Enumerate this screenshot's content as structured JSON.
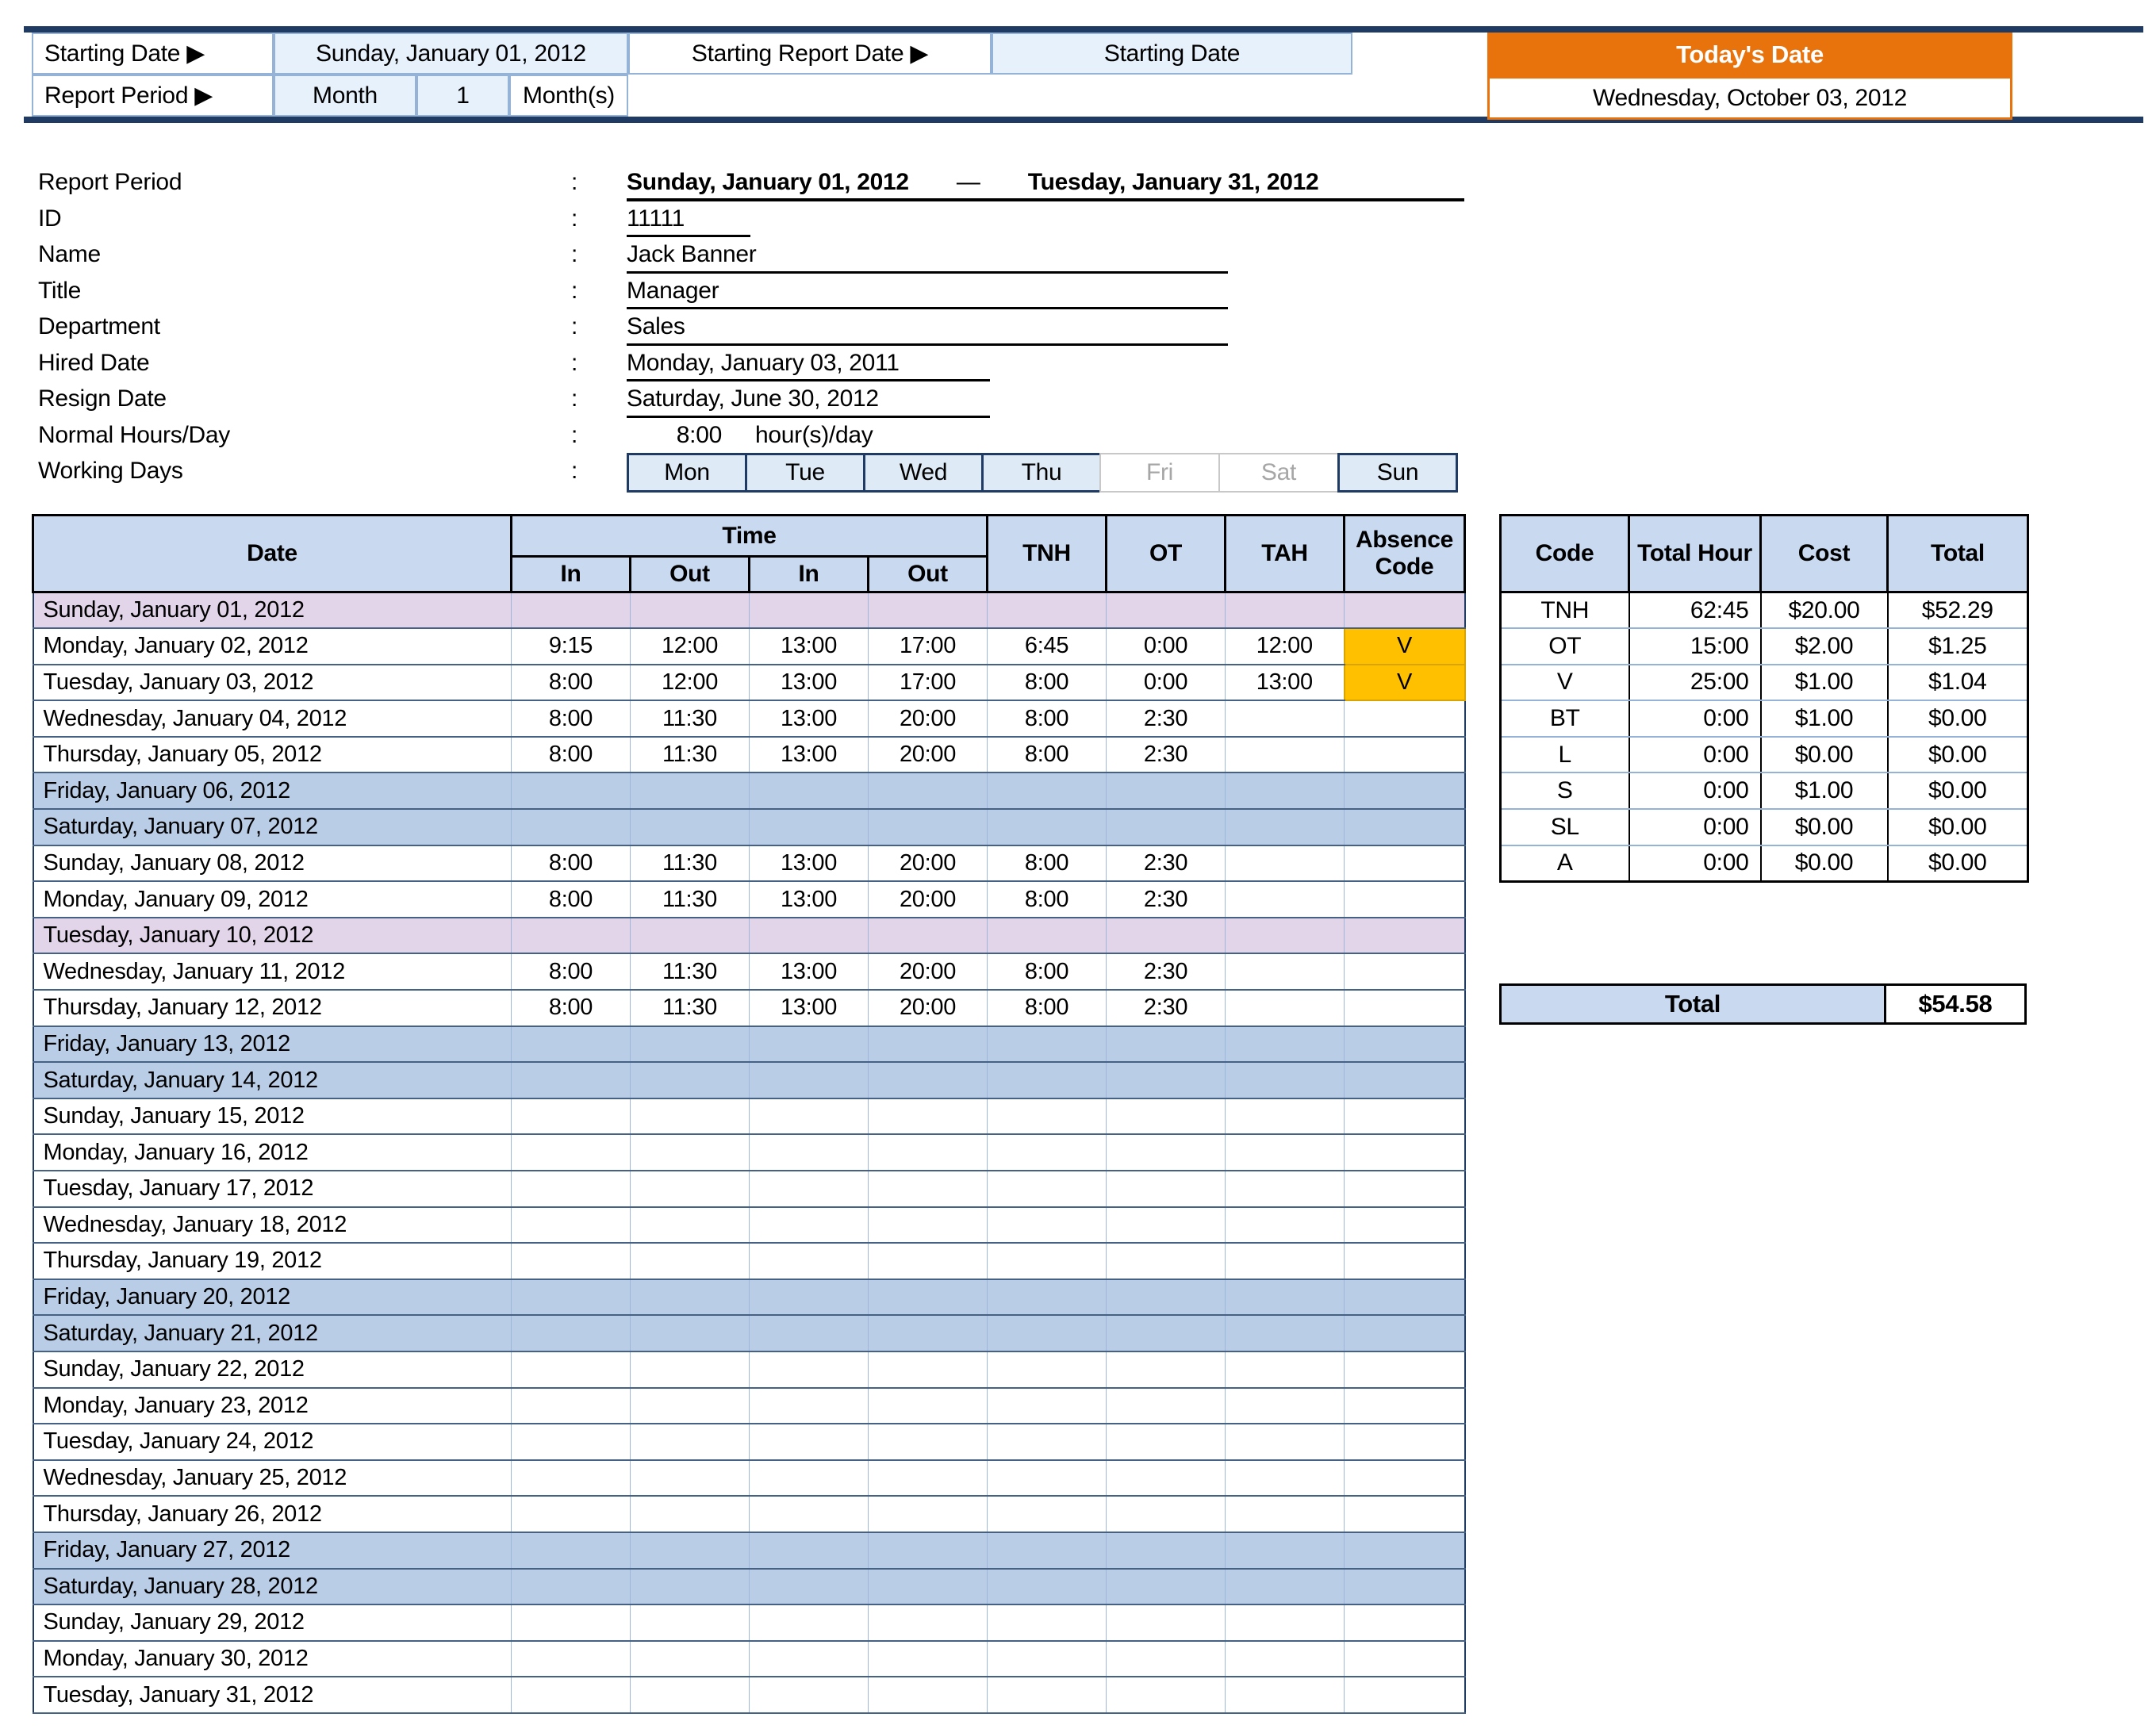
{
  "ui": {
    "colon": ":"
  },
  "colors": {
    "navy": "#1F3B63",
    "pale_blue": "#E7F1FB",
    "header_blue": "#C8D9F0",
    "weekend_blue": "#B9CDE6",
    "holiday_lavender": "#E2D5E9",
    "absence_gold": "#FFC000",
    "accent_orange": "#E8730C",
    "grid_vertical": "#9DB6D9",
    "grid_horizontal": "#456285",
    "cell_border_blue": "#95B3D7",
    "day_active": "#DEEBF7",
    "inactive_gray": "#A6A6A6"
  },
  "top_bar": {
    "starting_date_label": "Starting Date ▶",
    "starting_date_value": "Sunday, January 01, 2012",
    "report_period_label": "Report Period ▶",
    "report_period_unit": "Month",
    "report_period_count": "1",
    "report_period_suffix": "Month(s)",
    "starting_report_date_label": "Starting Report Date ▶",
    "starting_report_date_value": "Starting Date",
    "todays_date_label": "Today's Date",
    "todays_date_value": "Wednesday, October 03, 2012"
  },
  "info": {
    "report_period": {
      "label": "Report Period",
      "start": "Sunday, January 01, 2012",
      "dash": "—",
      "end": "Tuesday, January 31, 2012"
    },
    "id": {
      "label": "ID",
      "value": "11111"
    },
    "name": {
      "label": "Name",
      "value": "Jack Banner"
    },
    "title": {
      "label": "Title",
      "value": "Manager"
    },
    "department": {
      "label": "Department",
      "value": "Sales"
    },
    "hired_date": {
      "label": "Hired Date",
      "value": "Monday, January 03, 2011"
    },
    "resign_date": {
      "label": "Resign Date",
      "value": "Saturday, June 30, 2012"
    },
    "normal_hours": {
      "label": "Normal Hours/Day",
      "value": "8:00",
      "suffix": "hour(s)/day"
    },
    "working_days_label": "Working Days"
  },
  "working_days": [
    {
      "label": "Mon",
      "active": true
    },
    {
      "label": "Tue",
      "active": true
    },
    {
      "label": "Wed",
      "active": true
    },
    {
      "label": "Thu",
      "active": true
    },
    {
      "label": "Fri",
      "active": false
    },
    {
      "label": "Sat",
      "active": false
    },
    {
      "label": "Sun",
      "active": true
    }
  ],
  "timesheet": {
    "headers": {
      "date": "Date",
      "time": "Time",
      "in": "In",
      "out": "Out",
      "tnh": "TNH",
      "ot": "OT",
      "tah": "TAH",
      "absence": "Absence Code"
    },
    "rows": [
      {
        "date": "Sunday, January 01, 2012",
        "type": "holiday",
        "in1": "",
        "out1": "",
        "in2": "",
        "out2": "",
        "tnh": "",
        "ot": "",
        "tah": "",
        "abs": ""
      },
      {
        "date": "Monday, January 02, 2012",
        "type": "normal",
        "in1": "9:15",
        "out1": "12:00",
        "in2": "13:00",
        "out2": "17:00",
        "tnh": "6:45",
        "ot": "0:00",
        "tah": "12:00",
        "abs": "V"
      },
      {
        "date": "Tuesday, January 03, 2012",
        "type": "normal",
        "in1": "8:00",
        "out1": "12:00",
        "in2": "13:00",
        "out2": "17:00",
        "tnh": "8:00",
        "ot": "0:00",
        "tah": "13:00",
        "abs": "V"
      },
      {
        "date": "Wednesday, January 04, 2012",
        "type": "normal",
        "in1": "8:00",
        "out1": "11:30",
        "in2": "13:00",
        "out2": "20:00",
        "tnh": "8:00",
        "ot": "2:30",
        "tah": "",
        "abs": ""
      },
      {
        "date": "Thursday, January 05, 2012",
        "type": "normal",
        "in1": "8:00",
        "out1": "11:30",
        "in2": "13:00",
        "out2": "20:00",
        "tnh": "8:00",
        "ot": "2:30",
        "tah": "",
        "abs": ""
      },
      {
        "date": "Friday, January 06, 2012",
        "type": "weekend",
        "in1": "",
        "out1": "",
        "in2": "",
        "out2": "",
        "tnh": "",
        "ot": "",
        "tah": "",
        "abs": ""
      },
      {
        "date": "Saturday, January 07, 2012",
        "type": "weekend",
        "in1": "",
        "out1": "",
        "in2": "",
        "out2": "",
        "tnh": "",
        "ot": "",
        "tah": "",
        "abs": ""
      },
      {
        "date": "Sunday, January 08, 2012",
        "type": "normal",
        "in1": "8:00",
        "out1": "11:30",
        "in2": "13:00",
        "out2": "20:00",
        "tnh": "8:00",
        "ot": "2:30",
        "tah": "",
        "abs": ""
      },
      {
        "date": "Monday, January 09, 2012",
        "type": "normal",
        "in1": "8:00",
        "out1": "11:30",
        "in2": "13:00",
        "out2": "20:00",
        "tnh": "8:00",
        "ot": "2:30",
        "tah": "",
        "abs": ""
      },
      {
        "date": "Tuesday, January 10, 2012",
        "type": "holiday",
        "in1": "",
        "out1": "",
        "in2": "",
        "out2": "",
        "tnh": "",
        "ot": "",
        "tah": "",
        "abs": ""
      },
      {
        "date": "Wednesday, January 11, 2012",
        "type": "normal",
        "in1": "8:00",
        "out1": "11:30",
        "in2": "13:00",
        "out2": "20:00",
        "tnh": "8:00",
        "ot": "2:30",
        "tah": "",
        "abs": ""
      },
      {
        "date": "Thursday, January 12, 2012",
        "type": "normal",
        "in1": "8:00",
        "out1": "11:30",
        "in2": "13:00",
        "out2": "20:00",
        "tnh": "8:00",
        "ot": "2:30",
        "tah": "",
        "abs": ""
      },
      {
        "date": "Friday, January 13, 2012",
        "type": "weekend",
        "in1": "",
        "out1": "",
        "in2": "",
        "out2": "",
        "tnh": "",
        "ot": "",
        "tah": "",
        "abs": ""
      },
      {
        "date": "Saturday, January 14, 2012",
        "type": "weekend",
        "in1": "",
        "out1": "",
        "in2": "",
        "out2": "",
        "tnh": "",
        "ot": "",
        "tah": "",
        "abs": ""
      },
      {
        "date": "Sunday, January 15, 2012",
        "type": "normal",
        "in1": "",
        "out1": "",
        "in2": "",
        "out2": "",
        "tnh": "",
        "ot": "",
        "tah": "",
        "abs": ""
      },
      {
        "date": "Monday, January 16, 2012",
        "type": "normal",
        "in1": "",
        "out1": "",
        "in2": "",
        "out2": "",
        "tnh": "",
        "ot": "",
        "tah": "",
        "abs": ""
      },
      {
        "date": "Tuesday, January 17, 2012",
        "type": "normal",
        "in1": "",
        "out1": "",
        "in2": "",
        "out2": "",
        "tnh": "",
        "ot": "",
        "tah": "",
        "abs": ""
      },
      {
        "date": "Wednesday, January 18, 2012",
        "type": "normal",
        "in1": "",
        "out1": "",
        "in2": "",
        "out2": "",
        "tnh": "",
        "ot": "",
        "tah": "",
        "abs": ""
      },
      {
        "date": "Thursday, January 19, 2012",
        "type": "normal",
        "in1": "",
        "out1": "",
        "in2": "",
        "out2": "",
        "tnh": "",
        "ot": "",
        "tah": "",
        "abs": ""
      },
      {
        "date": "Friday, January 20, 2012",
        "type": "weekend",
        "in1": "",
        "out1": "",
        "in2": "",
        "out2": "",
        "tnh": "",
        "ot": "",
        "tah": "",
        "abs": ""
      },
      {
        "date": "Saturday, January 21, 2012",
        "type": "weekend",
        "in1": "",
        "out1": "",
        "in2": "",
        "out2": "",
        "tnh": "",
        "ot": "",
        "tah": "",
        "abs": ""
      },
      {
        "date": "Sunday, January 22, 2012",
        "type": "normal",
        "in1": "",
        "out1": "",
        "in2": "",
        "out2": "",
        "tnh": "",
        "ot": "",
        "tah": "",
        "abs": ""
      },
      {
        "date": "Monday, January 23, 2012",
        "type": "normal",
        "in1": "",
        "out1": "",
        "in2": "",
        "out2": "",
        "tnh": "",
        "ot": "",
        "tah": "",
        "abs": ""
      },
      {
        "date": "Tuesday, January 24, 2012",
        "type": "normal",
        "in1": "",
        "out1": "",
        "in2": "",
        "out2": "",
        "tnh": "",
        "ot": "",
        "tah": "",
        "abs": ""
      },
      {
        "date": "Wednesday, January 25, 2012",
        "type": "normal",
        "in1": "",
        "out1": "",
        "in2": "",
        "out2": "",
        "tnh": "",
        "ot": "",
        "tah": "",
        "abs": ""
      },
      {
        "date": "Thursday, January 26, 2012",
        "type": "normal",
        "in1": "",
        "out1": "",
        "in2": "",
        "out2": "",
        "tnh": "",
        "ot": "",
        "tah": "",
        "abs": ""
      },
      {
        "date": "Friday, January 27, 2012",
        "type": "weekend",
        "in1": "",
        "out1": "",
        "in2": "",
        "out2": "",
        "tnh": "",
        "ot": "",
        "tah": "",
        "abs": ""
      },
      {
        "date": "Saturday, January 28, 2012",
        "type": "weekend",
        "in1": "",
        "out1": "",
        "in2": "",
        "out2": "",
        "tnh": "",
        "ot": "",
        "tah": "",
        "abs": ""
      },
      {
        "date": "Sunday, January 29, 2012",
        "type": "normal",
        "in1": "",
        "out1": "",
        "in2": "",
        "out2": "",
        "tnh": "",
        "ot": "",
        "tah": "",
        "abs": ""
      },
      {
        "date": "Monday, January 30, 2012",
        "type": "normal",
        "in1": "",
        "out1": "",
        "in2": "",
        "out2": "",
        "tnh": "",
        "ot": "",
        "tah": "",
        "abs": ""
      },
      {
        "date": "Tuesday, January 31, 2012",
        "type": "normal",
        "in1": "",
        "out1": "",
        "in2": "",
        "out2": "",
        "tnh": "",
        "ot": "",
        "tah": "",
        "abs": ""
      }
    ]
  },
  "summary": {
    "headers": {
      "code": "Code",
      "hour": "Total Hour",
      "cost": "Cost",
      "total": "Total"
    },
    "rows": [
      {
        "code": "TNH",
        "hour": "62:45",
        "cost": "$20.00",
        "total": "$52.29"
      },
      {
        "code": "OT",
        "hour": "15:00",
        "cost": "$2.00",
        "total": "$1.25"
      },
      {
        "code": "V",
        "hour": "25:00",
        "cost": "$1.00",
        "total": "$1.04"
      },
      {
        "code": "BT",
        "hour": "0:00",
        "cost": "$1.00",
        "total": "$0.00"
      },
      {
        "code": "L",
        "hour": "0:00",
        "cost": "$0.00",
        "total": "$0.00"
      },
      {
        "code": "S",
        "hour": "0:00",
        "cost": "$1.00",
        "total": "$0.00"
      },
      {
        "code": "SL",
        "hour": "0:00",
        "cost": "$0.00",
        "total": "$0.00"
      },
      {
        "code": "A",
        "hour": "0:00",
        "cost": "$0.00",
        "total": "$0.00"
      }
    ],
    "total_label": "Total",
    "total_value": "$54.58"
  }
}
